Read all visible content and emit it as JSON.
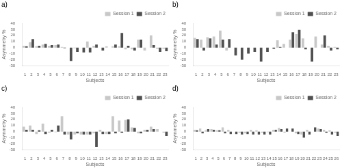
{
  "chart_data": [
    {
      "type": "bar",
      "title": "a)",
      "xlabel": "Subjects",
      "ylabel": "Asymmetry %",
      "categories": [
        1,
        2,
        3,
        4,
        5,
        6,
        7,
        8,
        9,
        10,
        11,
        12,
        13,
        14,
        15,
        16,
        17,
        18,
        19,
        20,
        21,
        22,
        23
      ],
      "series": [
        {
          "name": "Session 1",
          "color": "#c8c8c8",
          "values": [
            3,
            9,
            2,
            5,
            3,
            4,
            1,
            0,
            -1,
            0,
            10,
            3,
            0,
            2,
            2,
            2,
            -3,
            -3,
            13,
            -5,
            20,
            -2,
            -2
          ]
        },
        {
          "name": "Session 2",
          "color": "#505050",
          "values": [
            2,
            14,
            3,
            6,
            4,
            5,
            -1,
            -22,
            -7,
            -8,
            -8,
            5,
            -5,
            0,
            5,
            24,
            3,
            -5,
            13,
            0,
            4,
            -7,
            -6
          ]
        }
      ],
      "ylim": [
        -30,
        40
      ],
      "yticks": [
        -30,
        -20,
        -10,
        0,
        10,
        20,
        30,
        40
      ],
      "grid": false,
      "legend": "upper right"
    },
    {
      "type": "bar",
      "title": "b)",
      "xlabel": "Subjects",
      "ylabel": "Asymmetry %",
      "categories": [
        1,
        2,
        3,
        4,
        5,
        6,
        7,
        8,
        9,
        10,
        11,
        12,
        13,
        14,
        15,
        16,
        17,
        18,
        19,
        20,
        21,
        22,
        23
      ],
      "series": [
        {
          "name": "Session 1",
          "color": "#c8c8c8",
          "values": [
            16,
            13,
            17,
            18,
            28,
            -5,
            0,
            0,
            0,
            0,
            0,
            0,
            0,
            12,
            6,
            13,
            22,
            15,
            0,
            18,
            5,
            3,
            1
          ]
        },
        {
          "name": "Session 2",
          "color": "#505050",
          "values": [
            14,
            -5,
            15,
            5,
            13,
            14,
            -13,
            -20,
            -10,
            -7,
            -23,
            -7,
            -2,
            1,
            0,
            25,
            29,
            -3,
            -23,
            0,
            20,
            -5,
            -3
          ]
        }
      ],
      "ylim": [
        -30,
        40
      ],
      "yticks": [
        -30,
        -20,
        -10,
        0,
        10,
        20,
        30,
        40
      ],
      "grid": false,
      "legend": "upper right"
    },
    {
      "type": "bar",
      "title": "c)",
      "xlabel": "Subjects",
      "ylabel": "Asymmetry %",
      "categories": [
        1,
        2,
        3,
        4,
        5,
        6,
        7,
        8,
        9,
        10,
        11,
        12,
        13,
        14,
        15,
        16,
        17,
        18,
        19,
        20,
        21,
        22,
        23
      ],
      "series": [
        {
          "name": "Session 1",
          "color": "#c8c8c8",
          "values": [
            8,
            10,
            -4,
            13,
            -2,
            -1,
            25,
            -5,
            -5,
            -5,
            -5,
            -3,
            3,
            -4,
            25,
            18,
            19,
            7,
            -3,
            3,
            8,
            4,
            -2
          ]
        },
        {
          "name": "Session 2",
          "color": "#505050",
          "values": [
            3,
            3,
            2,
            -4,
            3,
            10,
            -5,
            -13,
            -3,
            -5,
            -5,
            -25,
            -4,
            -4,
            -3,
            -2,
            20,
            6,
            -3,
            3,
            4,
            0,
            -7
          ]
        }
      ],
      "ylim": [
        -30,
        40
      ],
      "yticks": [
        -30,
        -20,
        -10,
        0,
        10,
        20,
        30,
        40
      ],
      "grid": false,
      "legend": "upper right"
    },
    {
      "type": "bar",
      "title": "d)",
      "xlabel": "Subjects",
      "ylabel": "Asymmetry %",
      "categories": [
        1,
        2,
        3,
        4,
        5,
        6,
        7,
        8,
        9,
        10,
        11,
        12,
        13,
        14,
        15,
        16,
        17,
        18,
        19,
        20,
        21,
        22,
        23,
        24,
        25,
        26
      ],
      "series": [
        {
          "name": "Session 1",
          "color": "#c8c8c8",
          "values": [
            3,
            5,
            2,
            4,
            2,
            7,
            3,
            0,
            -2,
            -3,
            3,
            2,
            -2,
            -1,
            3,
            6,
            -2,
            0,
            -3,
            -5,
            3,
            0,
            5,
            3,
            2,
            -2
          ]
        },
        {
          "name": "Session 2",
          "color": "#505050",
          "values": [
            2,
            -3,
            4,
            3,
            2,
            -3,
            -4,
            -4,
            -5,
            -4,
            -5,
            -5,
            -5,
            -5,
            3,
            4,
            5,
            5,
            -4,
            -10,
            -5,
            7,
            4,
            -2,
            -5,
            -7
          ]
        }
      ],
      "ylim": [
        -30,
        40
      ],
      "yticks": [
        -30,
        -20,
        -10,
        0,
        10,
        20,
        30,
        40
      ],
      "grid": false,
      "legend": "upper right"
    }
  ]
}
